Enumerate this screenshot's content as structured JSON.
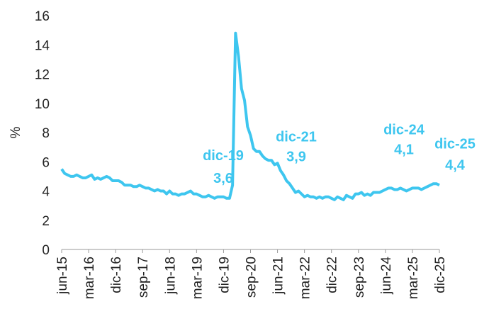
{
  "chart_data": {
    "type": "line",
    "y_label": "%",
    "categories": [
      "jun-15",
      null,
      null,
      null,
      null,
      null,
      null,
      null,
      null,
      "mar-16",
      null,
      null,
      null,
      null,
      null,
      null,
      null,
      null,
      "dic-16",
      null,
      null,
      null,
      null,
      null,
      null,
      null,
      null,
      "sep-17",
      null,
      null,
      null,
      null,
      null,
      null,
      null,
      null,
      "jun-18",
      null,
      null,
      null,
      null,
      null,
      null,
      null,
      null,
      "mar-19",
      null,
      null,
      null,
      null,
      null,
      null,
      null,
      null,
      "dic-19",
      null,
      null,
      null,
      null,
      null,
      null,
      null,
      null,
      "sep-20",
      null,
      null,
      null,
      null,
      null,
      null,
      null,
      null,
      "jun-21",
      null,
      null,
      null,
      null,
      null,
      null,
      null,
      null,
      "mar-22",
      null,
      null,
      null,
      null,
      null,
      null,
      null,
      null,
      "dic-22",
      null,
      null,
      null,
      null,
      null,
      null,
      null,
      null,
      "sep-23",
      null,
      null,
      null,
      null,
      null,
      null,
      null,
      null,
      "jun-24",
      null,
      null,
      null,
      null,
      null,
      null,
      null,
      null,
      "mar-25",
      null,
      null,
      null,
      null,
      null,
      null,
      null,
      null,
      "dic-25"
    ],
    "series": [
      {
        "name": "%",
        "color": "#3ec6ef",
        "values": [
          5.5,
          5.2,
          5.1,
          5.0,
          5.0,
          5.1,
          5.0,
          4.9,
          4.9,
          5.0,
          5.1,
          4.8,
          4.9,
          4.8,
          4.9,
          5.0,
          4.9,
          4.7,
          4.7,
          4.7,
          4.6,
          4.4,
          4.4,
          4.4,
          4.3,
          4.3,
          4.4,
          4.3,
          4.2,
          4.2,
          4.1,
          4.0,
          4.1,
          4.0,
          4.0,
          3.8,
          4.0,
          3.8,
          3.8,
          3.7,
          3.8,
          3.8,
          3.9,
          4.0,
          3.8,
          3.8,
          3.7,
          3.6,
          3.6,
          3.7,
          3.6,
          3.5,
          3.6,
          3.6,
          3.6,
          3.5,
          3.5,
          4.4,
          14.8,
          13.2,
          11.0,
          10.2,
          8.4,
          7.8,
          6.9,
          6.7,
          6.7,
          6.4,
          6.2,
          6.1,
          6.1,
          5.8,
          5.9,
          5.4,
          5.1,
          4.7,
          4.5,
          4.2,
          3.9,
          4.0,
          3.8,
          3.6,
          3.7,
          3.6,
          3.6,
          3.5,
          3.6,
          3.5,
          3.6,
          3.6,
          3.5,
          3.4,
          3.6,
          3.5,
          3.4,
          3.7,
          3.6,
          3.5,
          3.8,
          3.8,
          3.9,
          3.7,
          3.8,
          3.7,
          3.9,
          3.9,
          3.9,
          4.0,
          4.1,
          4.2,
          4.2,
          4.1,
          4.1,
          4.2,
          4.1,
          4.0,
          4.1,
          4.2,
          4.2,
          4.2,
          4.1,
          4.2,
          4.3,
          4.4,
          4.5,
          4.5,
          4.4
        ]
      }
    ],
    "annotations": [
      {
        "label": "dic-19",
        "value": 3.6,
        "value_label": "3,6"
      },
      {
        "label": "dic-21",
        "value": 3.9,
        "value_label": "3,9"
      },
      {
        "label": "dic-24",
        "value": 4.1,
        "value_label": "4,1"
      },
      {
        "label": "dic-25",
        "value": 4.4,
        "value_label": "4,4"
      }
    ],
    "ylim": [
      0,
      16
    ],
    "yticks": [
      0,
      2,
      4,
      6,
      8,
      10,
      12,
      14,
      16
    ]
  }
}
